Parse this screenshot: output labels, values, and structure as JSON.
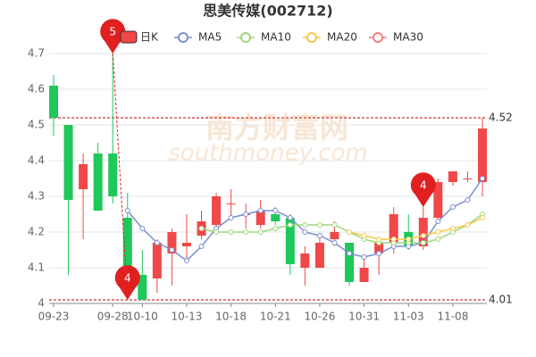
{
  "chart_data": {
    "type": "candlestick",
    "title": "思美传媒(002712)",
    "watermark": [
      "南方财富网",
      "southmoney.com"
    ],
    "categories": [
      "09-23",
      null,
      null,
      null,
      "09-28",
      null,
      "10-10",
      null,
      null,
      "10-13",
      null,
      null,
      "10-18",
      null,
      null,
      "10-21",
      null,
      null,
      "10-26",
      null,
      null,
      "10-31",
      null,
      null,
      "11-03",
      null,
      null,
      "11-08",
      null,
      null
    ],
    "series": [
      {
        "name": "日K",
        "up_color": "#f04848",
        "down_color": "#1ec85a",
        "open": [
          4.61,
          4.5,
          4.32,
          4.42,
          4.42,
          4.24,
          4.08,
          4.07,
          4.14,
          4.16,
          4.19,
          4.22,
          4.28,
          4.25,
          4.22,
          4.25,
          4.24,
          4.1,
          4.1,
          4.18,
          4.17,
          4.06,
          4.14,
          4.17,
          4.2,
          4.16,
          4.24,
          4.34,
          4.35,
          4.34
        ],
        "high": [
          4.64,
          4.5,
          4.42,
          4.45,
          4.7,
          4.31,
          4.15,
          4.18,
          4.21,
          4.25,
          4.26,
          4.31,
          4.32,
          4.28,
          4.29,
          4.27,
          4.25,
          4.16,
          4.19,
          4.23,
          4.17,
          4.13,
          4.18,
          4.27,
          4.25,
          4.27,
          4.35,
          4.37,
          4.37,
          4.52
        ],
        "low": [
          4.47,
          4.08,
          4.18,
          4.26,
          4.28,
          4.01,
          4.01,
          4.03,
          4.05,
          4.12,
          4.18,
          4.2,
          4.24,
          4.21,
          4.21,
          4.22,
          4.08,
          4.05,
          4.1,
          4.16,
          4.05,
          4.06,
          4.08,
          4.14,
          4.15,
          4.15,
          4.23,
          4.33,
          4.34,
          4.3
        ],
        "close": [
          4.52,
          4.29,
          4.39,
          4.26,
          4.3,
          4.04,
          4.01,
          4.17,
          4.2,
          4.17,
          4.23,
          4.3,
          4.28,
          4.25,
          4.26,
          4.23,
          4.11,
          4.14,
          4.17,
          4.2,
          4.06,
          4.1,
          4.17,
          4.25,
          4.16,
          4.24,
          4.34,
          4.37,
          4.35,
          4.49
        ]
      },
      {
        "name": "MA5",
        "color": "#7b8fd0",
        "values": [
          null,
          null,
          null,
          null,
          null,
          4.26,
          4.21,
          4.17,
          4.15,
          4.12,
          4.16,
          4.21,
          4.24,
          4.25,
          4.26,
          4.26,
          4.24,
          4.2,
          4.19,
          4.17,
          4.14,
          4.13,
          4.14,
          4.16,
          4.16,
          4.17,
          4.23,
          4.27,
          4.29,
          4.35
        ]
      },
      {
        "name": "MA10",
        "color": "#9fd67b",
        "values": [
          null,
          null,
          null,
          null,
          null,
          null,
          null,
          null,
          null,
          null,
          4.21,
          4.2,
          4.2,
          4.2,
          4.2,
          4.21,
          4.22,
          4.22,
          4.22,
          4.22,
          4.2,
          4.18,
          4.17,
          4.17,
          4.17,
          4.17,
          4.18,
          4.2,
          4.22,
          4.25
        ]
      },
      {
        "name": "MA20",
        "color": "#f5c94a",
        "values": [
          null,
          null,
          null,
          null,
          null,
          null,
          null,
          null,
          null,
          null,
          null,
          null,
          null,
          null,
          null,
          null,
          null,
          null,
          null,
          null,
          4.2,
          4.19,
          4.18,
          4.18,
          4.18,
          4.19,
          4.2,
          4.21,
          4.22,
          4.24
        ]
      },
      {
        "name": "MA30",
        "color": "#f08080",
        "values": [
          null,
          null,
          null,
          null,
          null,
          null,
          null,
          null,
          null,
          null,
          null,
          null,
          null,
          null,
          null,
          null,
          null,
          null,
          null,
          null,
          null,
          null,
          null,
          null,
          null,
          null,
          null,
          null,
          null,
          null
        ]
      }
    ],
    "annotations": [
      {
        "text": "5",
        "index": 4,
        "value": 4.7
      },
      {
        "text": "4",
        "index": 5,
        "value": 4.01
      },
      {
        "text": "4",
        "index": 25,
        "value": 4.27
      }
    ],
    "ref_lines": [
      4.52,
      4.01
    ],
    "ref_color": "#c00000",
    "ylim": [
      4.0,
      4.73
    ],
    "yticks": [
      4,
      4.1,
      4.2,
      4.3,
      4.4,
      4.5,
      4.6,
      4.7
    ],
    "grid": true
  }
}
